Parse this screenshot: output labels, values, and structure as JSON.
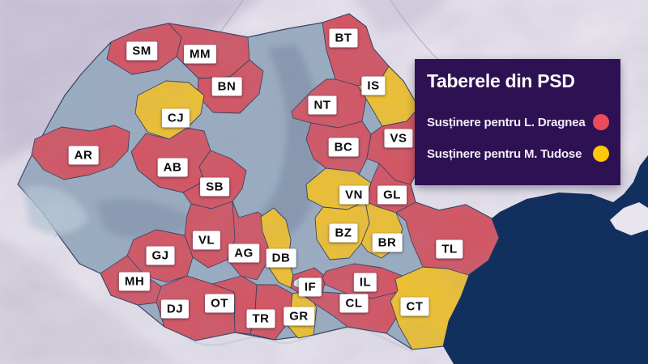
{
  "legend": {
    "title": "Taberele din PSD",
    "panel_color": "#2e1153",
    "items": [
      {
        "id": "dragnea",
        "label": "Susținere pentru L. Dragnea",
        "color": "#ea4b5c"
      },
      {
        "id": "tudose",
        "label": "Susținere pentru M. Tudose",
        "color": "#fec70a"
      }
    ]
  },
  "map": {
    "colors": {
      "dragnea": "#d6525f",
      "tudose": "#f2c32b",
      "neutral": "#9aaec2",
      "sea": "#12305e",
      "stroke": "#2c3a57",
      "background_land": "#eae6ef",
      "bucharest_patch": "#e8e6ef"
    },
    "counties": [
      {
        "code": "SM",
        "faction": "dragnea"
      },
      {
        "code": "MM",
        "faction": "dragnea"
      },
      {
        "code": "BT",
        "faction": "dragnea"
      },
      {
        "code": "BN",
        "faction": "dragnea"
      },
      {
        "code": "NT",
        "faction": "dragnea"
      },
      {
        "code": "IS",
        "faction": "tudose"
      },
      {
        "code": "BC",
        "faction": "dragnea"
      },
      {
        "code": "VS",
        "faction": "dragnea"
      },
      {
        "code": "CJ",
        "faction": "tudose"
      },
      {
        "code": "AR",
        "faction": "dragnea"
      },
      {
        "code": "AB",
        "faction": "dragnea"
      },
      {
        "code": "SB",
        "faction": "dragnea"
      },
      {
        "code": "VL",
        "faction": "dragnea"
      },
      {
        "code": "AG",
        "faction": "dragnea"
      },
      {
        "code": "GJ",
        "faction": "dragnea"
      },
      {
        "code": "MH",
        "faction": "dragnea"
      },
      {
        "code": "DJ",
        "faction": "dragnea"
      },
      {
        "code": "OT",
        "faction": "dragnea"
      },
      {
        "code": "TR",
        "faction": "dragnea"
      },
      {
        "code": "GR",
        "faction": "tudose"
      },
      {
        "code": "IF",
        "faction": "dragnea"
      },
      {
        "code": "DB",
        "faction": "tudose"
      },
      {
        "code": "IL",
        "faction": "dragnea"
      },
      {
        "code": "CL",
        "faction": "dragnea"
      },
      {
        "code": "CT",
        "faction": "tudose"
      },
      {
        "code": "VN",
        "faction": "tudose"
      },
      {
        "code": "GL",
        "faction": "dragnea"
      },
      {
        "code": "BZ",
        "faction": "tudose"
      },
      {
        "code": "BR",
        "faction": "tudose"
      },
      {
        "code": "TL",
        "faction": "dragnea"
      }
    ]
  }
}
